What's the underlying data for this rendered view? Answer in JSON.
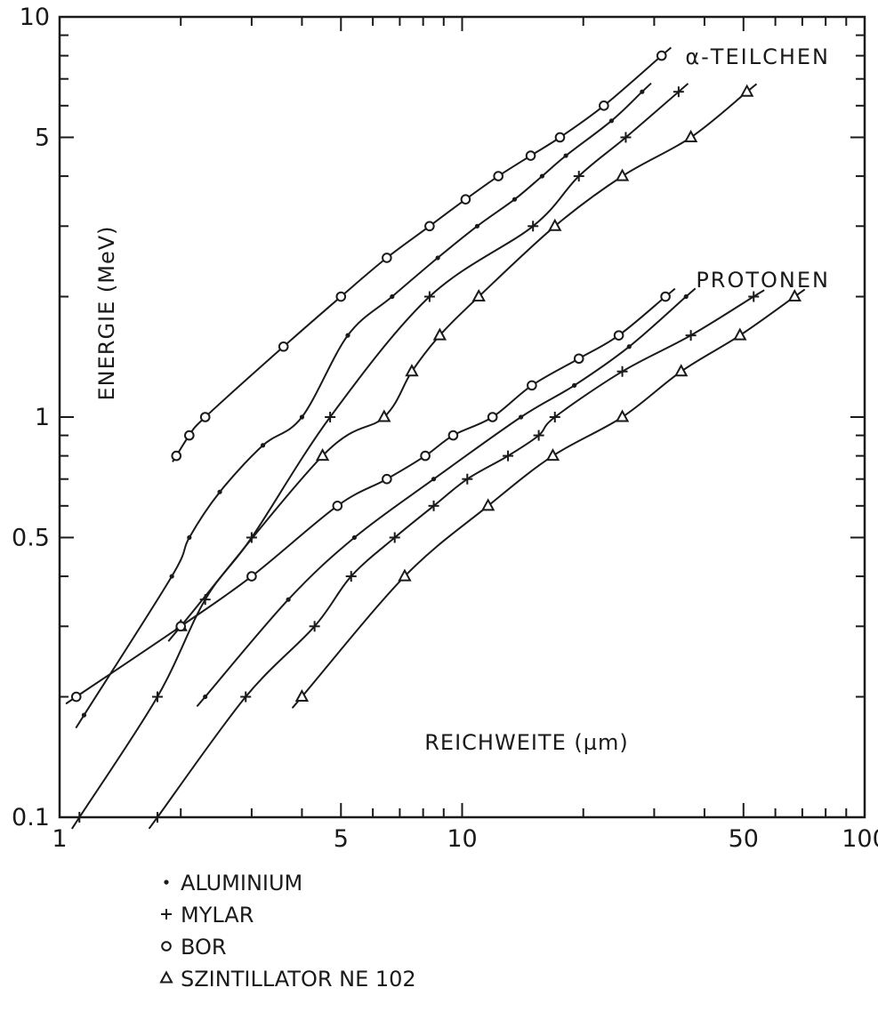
{
  "chart_data": {
    "type": "line",
    "xlabel": "REICHWEITE (µm)",
    "ylabel": "ENERGIE (MeV)",
    "xscale": "log",
    "yscale": "log",
    "xlim": [
      1,
      100
    ],
    "ylim": [
      0.1,
      10
    ],
    "xticks": [
      1,
      5,
      10,
      50,
      100
    ],
    "xtick_labels": [
      "1",
      "5",
      "10",
      "50",
      "100"
    ],
    "yticks": [
      0.1,
      0.5,
      1,
      5,
      10
    ],
    "ytick_labels": [
      "0.1",
      "0.5",
      "1",
      "5",
      "10"
    ],
    "grid": false,
    "annotations": [
      {
        "text": "α-TEILCHEN"
      },
      {
        "text": "PROTONEN"
      }
    ],
    "legend_title": "",
    "legend": [
      {
        "marker": "dot",
        "label": "ALUMINIUM"
      },
      {
        "marker": "plus",
        "label": "MYLAR"
      },
      {
        "marker": "circle",
        "label": "BOR"
      },
      {
        "marker": "triangle",
        "label": "SZINTILLATOR  NE 102"
      }
    ],
    "series": [
      {
        "group": "alpha",
        "material": "BOR",
        "marker": "circle",
        "x": [
          1.95,
          2.1,
          2.3,
          3.6,
          5.0,
          6.5,
          8.3,
          10.2,
          12.3,
          14.8,
          17.5,
          22.5,
          31.3
        ],
        "y": [
          0.8,
          0.9,
          1.0,
          1.5,
          2.0,
          2.5,
          3.0,
          3.5,
          4.0,
          4.5,
          5.0,
          6.0,
          8.0
        ]
      },
      {
        "group": "alpha",
        "material": "ALUMINIUM",
        "marker": "dot",
        "x": [
          1.15,
          1.9,
          2.1,
          2.5,
          3.2,
          4.0,
          5.2,
          6.7,
          8.7,
          10.9,
          13.5,
          15.8,
          18.1,
          23.5,
          28.0
        ],
        "y": [
          0.18,
          0.4,
          0.5,
          0.65,
          0.85,
          1.0,
          1.6,
          2.0,
          2.5,
          3.0,
          3.5,
          4.0,
          4.5,
          5.5,
          6.5
        ]
      },
      {
        "group": "alpha",
        "material": "MYLAR",
        "marker": "plus",
        "x": [
          1.12,
          1.75,
          2.3,
          3.0,
          4.7,
          8.3,
          15.0,
          19.5,
          25.5,
          34.5
        ],
        "y": [
          0.1,
          0.2,
          0.35,
          0.5,
          1.0,
          2.0,
          3.0,
          4.0,
          5.0,
          6.5
        ]
      },
      {
        "group": "alpha",
        "material": "SZINTILLATOR NE 102",
        "marker": "triangle",
        "x": [
          2.0,
          4.5,
          6.4,
          7.5,
          8.8,
          11.0,
          17.0,
          25.0,
          37.0,
          51.0
        ],
        "y": [
          0.3,
          0.8,
          1.0,
          1.3,
          1.6,
          2.0,
          3.0,
          4.0,
          5.0,
          6.5
        ]
      },
      {
        "group": "proton",
        "material": "BOR",
        "marker": "circle",
        "x": [
          1.1,
          2.0,
          3.0,
          4.9,
          6.5,
          8.1,
          9.5,
          11.9,
          14.9,
          19.5,
          24.5,
          32.0
        ],
        "y": [
          0.2,
          0.3,
          0.4,
          0.6,
          0.7,
          0.8,
          0.9,
          1.0,
          1.2,
          1.4,
          1.6,
          2.0
        ]
      },
      {
        "group": "proton",
        "material": "ALUMINIUM",
        "marker": "dot",
        "x": [
          2.3,
          3.7,
          5.4,
          8.5,
          14.0,
          19.0,
          26.0,
          36.0
        ],
        "y": [
          0.2,
          0.35,
          0.5,
          0.7,
          1.0,
          1.2,
          1.5,
          2.0
        ]
      },
      {
        "group": "proton",
        "material": "MYLAR",
        "marker": "plus",
        "x": [
          1.75,
          2.9,
          4.3,
          5.3,
          6.8,
          8.5,
          10.3,
          13.0,
          15.5,
          17.0,
          25.0,
          37.0,
          53.0
        ],
        "y": [
          0.1,
          0.2,
          0.3,
          0.4,
          0.5,
          0.6,
          0.7,
          0.8,
          0.9,
          1.0,
          1.3,
          1.6,
          2.0
        ]
      },
      {
        "group": "proton",
        "material": "SZINTILLATOR NE 102",
        "marker": "triangle",
        "x": [
          4.0,
          7.2,
          11.6,
          16.8,
          25.0,
          35.0,
          49.0,
          67.0
        ],
        "y": [
          0.2,
          0.4,
          0.6,
          0.8,
          1.0,
          1.3,
          1.6,
          2.0
        ]
      }
    ]
  }
}
